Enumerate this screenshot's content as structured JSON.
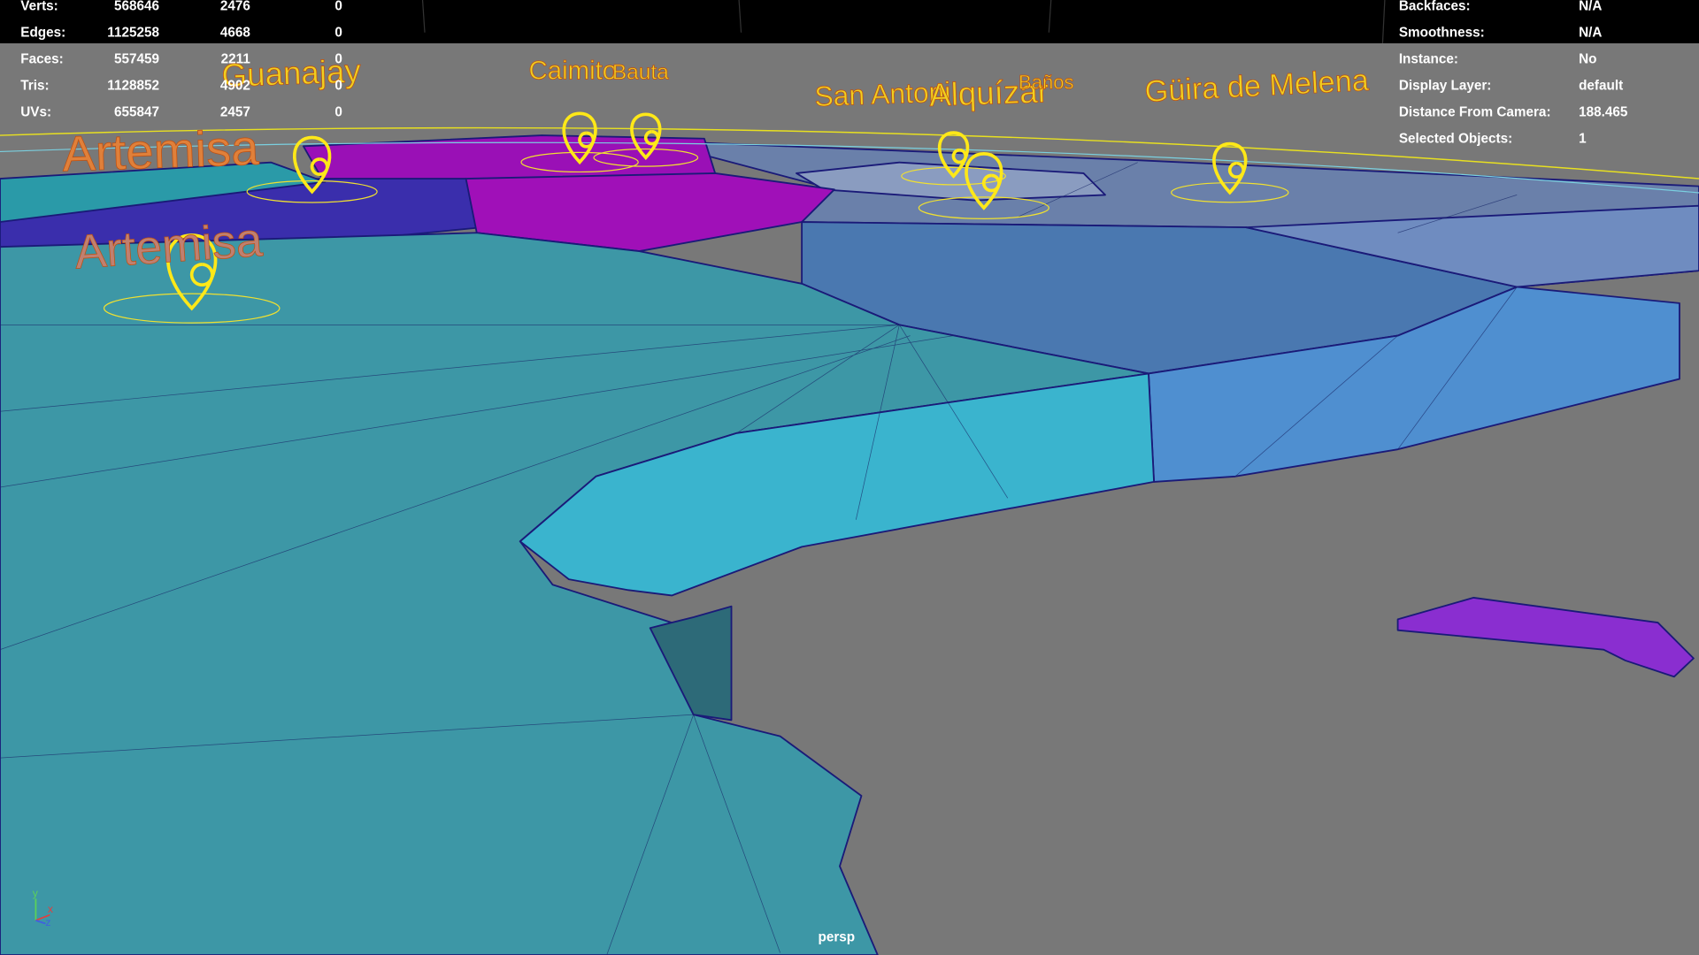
{
  "hud_left": {
    "rows": [
      {
        "label": "Verts:",
        "values": [
          "568646",
          "2476",
          "0"
        ]
      },
      {
        "label": "Edges:",
        "values": [
          "1125258",
          "4668",
          "0"
        ]
      },
      {
        "label": "Faces:",
        "values": [
          "557459",
          "2211",
          "0"
        ]
      },
      {
        "label": "Tris:",
        "values": [
          "1128852",
          "4902",
          "0"
        ]
      },
      {
        "label": "UVs:",
        "values": [
          "655847",
          "2457",
          "0"
        ]
      }
    ]
  },
  "hud_right": {
    "rows": [
      {
        "label": "Backfaces:",
        "value": "N/A"
      },
      {
        "label": "Smoothness:",
        "value": "N/A"
      },
      {
        "label": "Instance:",
        "value": "No"
      },
      {
        "label": "Display Layer:",
        "value": "default"
      },
      {
        "label": "Distance From Camera:",
        "value": "188.465"
      },
      {
        "label": "Selected Objects:",
        "value": "1"
      }
    ]
  },
  "map_labels": [
    "Artemisa",
    "Artemisa",
    "Guanajay",
    "Caimito",
    "Bauta",
    "San Antoni",
    "Alquízar",
    "Baños",
    "Güira de Melena"
  ],
  "viewport_label": "persp",
  "axis_labels": [
    "y",
    "x",
    "z"
  ]
}
